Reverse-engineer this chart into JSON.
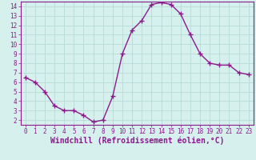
{
  "x": [
    0,
    1,
    2,
    3,
    4,
    5,
    6,
    7,
    8,
    9,
    10,
    11,
    12,
    13,
    14,
    15,
    16,
    17,
    18,
    19,
    20,
    21,
    22,
    23
  ],
  "y": [
    6.5,
    6.0,
    5.0,
    3.5,
    3.0,
    3.0,
    2.5,
    1.8,
    2.0,
    4.5,
    9.0,
    11.5,
    12.5,
    14.2,
    14.4,
    14.2,
    13.2,
    11.0,
    9.0,
    8.0,
    7.8,
    7.8,
    7.0,
    6.8
  ],
  "line_color": "#8b1a8b",
  "marker": "+",
  "marker_size": 4,
  "marker_linewidth": 1.0,
  "xlabel": "Windchill (Refroidissement éolien,°C)",
  "xlabel_fontsize": 7,
  "xlim_min": -0.5,
  "xlim_max": 23.5,
  "ylim_min": 1.5,
  "ylim_max": 14.5,
  "yticks": [
    2,
    3,
    4,
    5,
    6,
    7,
    8,
    9,
    10,
    11,
    12,
    13,
    14
  ],
  "xticks": [
    0,
    1,
    2,
    3,
    4,
    5,
    6,
    7,
    8,
    9,
    10,
    11,
    12,
    13,
    14,
    15,
    16,
    17,
    18,
    19,
    20,
    21,
    22,
    23
  ],
  "bg_color": "#d6f0ee",
  "grid_color": "#b8dbd8",
  "tick_color": "#8b1a8b",
  "tick_fontsize": 5.5,
  "border_color": "#8b1a8b",
  "line_width": 1.0,
  "xlabel_color": "#8b1a8b",
  "bottom_bar_color": "#8b1a8b"
}
